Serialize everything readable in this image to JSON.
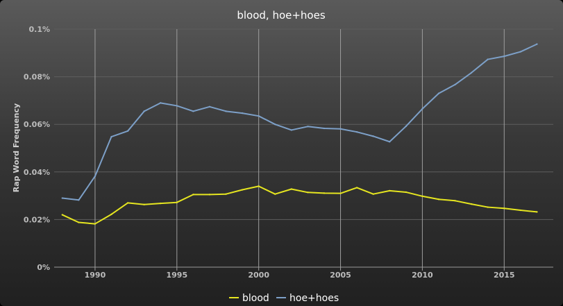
{
  "chart_data": {
    "type": "line",
    "title": "blood, hoe+hoes",
    "xlabel": "",
    "ylabel": "Rap Word Frequency",
    "x": [
      1988,
      1989,
      1990,
      1991,
      1992,
      1993,
      1994,
      1995,
      1996,
      1997,
      1998,
      1999,
      2000,
      2001,
      2002,
      2003,
      2004,
      2005,
      2006,
      2007,
      2008,
      2009,
      2010,
      2011,
      2012,
      2013,
      2014,
      2015,
      2016,
      2017
    ],
    "xlim": [
      1987.5,
      2018.0
    ],
    "ylim": [
      0,
      0.1
    ],
    "x_ticks": [
      1990,
      1995,
      2000,
      2005,
      2010,
      2015
    ],
    "y_ticks": [
      0,
      0.02,
      0.04,
      0.06,
      0.08,
      0.1
    ],
    "y_tick_labels": [
      "0%",
      "0.02%",
      "0.04%",
      "0.06%",
      "0.08%",
      "0.1%"
    ],
    "grid": {
      "vertical": true,
      "horizontal": true
    },
    "legend": "bottom-center",
    "series": [
      {
        "name": "blood",
        "color": "#e6e620",
        "values": [
          0.022,
          0.0188,
          0.0182,
          0.0222,
          0.027,
          0.0263,
          0.0268,
          0.0272,
          0.0305,
          0.0305,
          0.0307,
          0.0325,
          0.034,
          0.0307,
          0.0328,
          0.0314,
          0.0311,
          0.031,
          0.0334,
          0.0307,
          0.0321,
          0.0315,
          0.0298,
          0.0285,
          0.0279,
          0.0265,
          0.0252,
          0.0247,
          0.0239,
          0.0232
        ]
      },
      {
        "name": "hoe+hoes",
        "color": "#7da0c8",
        "values": [
          0.029,
          0.0282,
          0.0382,
          0.0548,
          0.0572,
          0.0655,
          0.069,
          0.0678,
          0.0655,
          0.0674,
          0.0655,
          0.0647,
          0.0635,
          0.06,
          0.0576,
          0.0591,
          0.0583,
          0.0581,
          0.0568,
          0.055,
          0.0527,
          0.0592,
          0.0665,
          0.073,
          0.0767,
          0.0817,
          0.0873,
          0.0886,
          0.0905,
          0.0937
        ]
      }
    ]
  }
}
